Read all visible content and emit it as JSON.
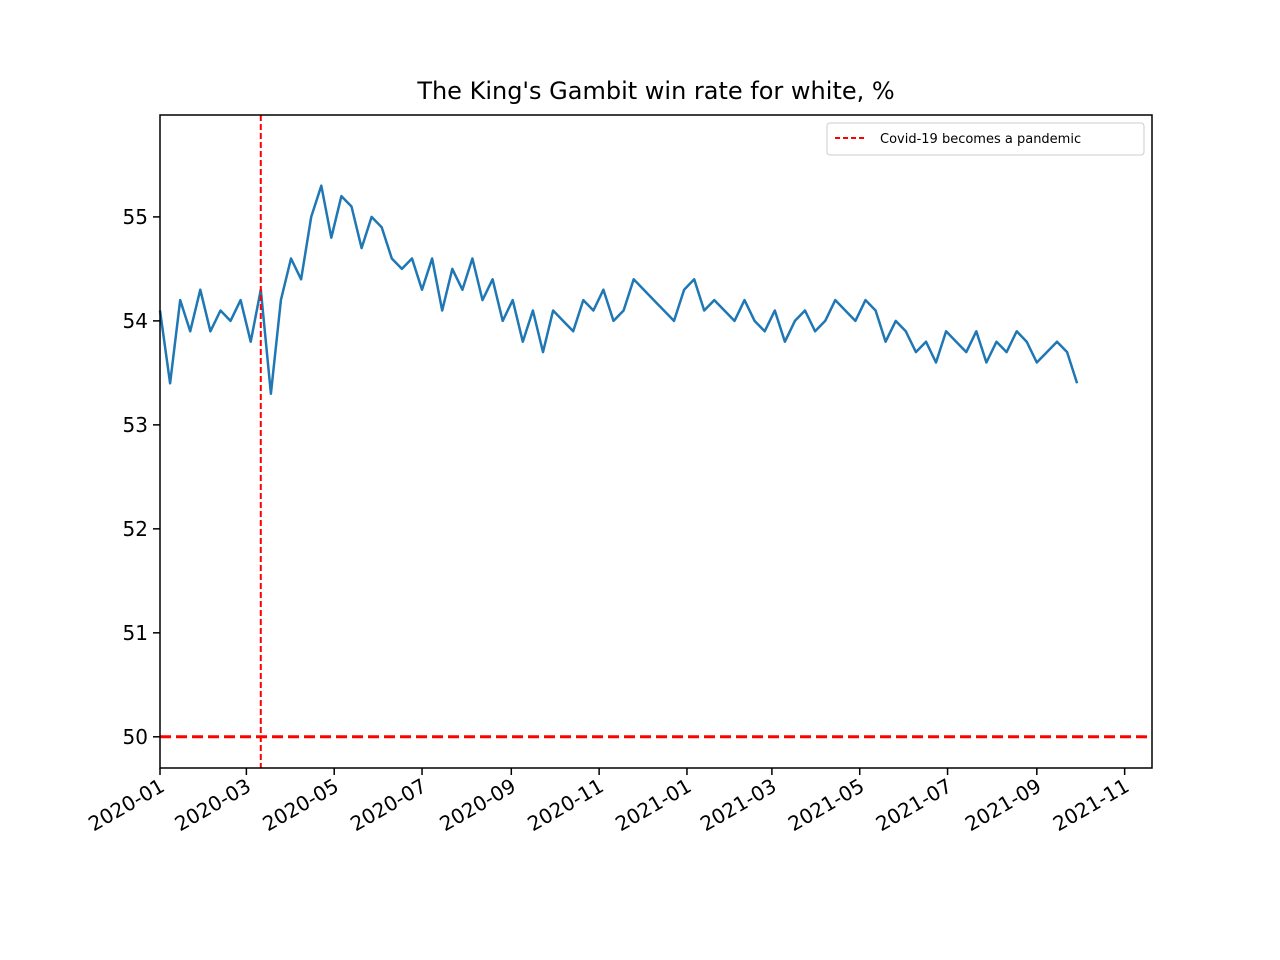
{
  "chart_data": {
    "type": "line",
    "title": "The King's Gambit win rate for white, %",
    "xlabel": "",
    "ylabel": "",
    "x_range": [
      "2020-01-01",
      "2021-11-20"
    ],
    "ylim": [
      49.7,
      55.98
    ],
    "x_ticks": [
      "2020-01",
      "2020-03",
      "2020-05",
      "2020-07",
      "2020-09",
      "2020-11",
      "2021-01",
      "2021-03",
      "2021-05",
      "2021-07",
      "2021-09",
      "2021-11"
    ],
    "y_ticks": [
      50,
      51,
      52,
      53,
      54,
      55
    ],
    "grid": false,
    "legend": {
      "placement": "top-right",
      "entries": [
        "Covid-19 becomes a pandemic"
      ]
    },
    "series": [
      {
        "color": "#1f77b4",
        "x": [
          "2020-01-01",
          "2020-01-08",
          "2020-01-15",
          "2020-01-22",
          "2020-01-29",
          "2020-02-05",
          "2020-02-12",
          "2020-02-19",
          "2020-02-26",
          "2020-03-04",
          "2020-03-11",
          "2020-03-18",
          "2020-03-25",
          "2020-04-01",
          "2020-04-08",
          "2020-04-15",
          "2020-04-22",
          "2020-04-29",
          "2020-05-06",
          "2020-05-13",
          "2020-05-20",
          "2020-05-27",
          "2020-06-03",
          "2020-06-10",
          "2020-06-17",
          "2020-06-24",
          "2020-07-01",
          "2020-07-08",
          "2020-07-15",
          "2020-07-22",
          "2020-07-29",
          "2020-08-05",
          "2020-08-12",
          "2020-08-19",
          "2020-08-26",
          "2020-09-02",
          "2020-09-09",
          "2020-09-16",
          "2020-09-23",
          "2020-09-30",
          "2020-10-07",
          "2020-10-14",
          "2020-10-21",
          "2020-10-28",
          "2020-11-04",
          "2020-11-11",
          "2020-11-18",
          "2020-11-25",
          "2020-12-02",
          "2020-12-09",
          "2020-12-16",
          "2020-12-23",
          "2020-12-30",
          "2021-01-06",
          "2021-01-13",
          "2021-01-20",
          "2021-01-27",
          "2021-02-03",
          "2021-02-10",
          "2021-02-17",
          "2021-02-24",
          "2021-03-03",
          "2021-03-10",
          "2021-03-17",
          "2021-03-24",
          "2021-03-31",
          "2021-04-07",
          "2021-04-14",
          "2021-04-21",
          "2021-04-28",
          "2021-05-05",
          "2021-05-12",
          "2021-05-19",
          "2021-05-26",
          "2021-06-02",
          "2021-06-09",
          "2021-06-16",
          "2021-06-23",
          "2021-06-30",
          "2021-07-07",
          "2021-07-14",
          "2021-07-21",
          "2021-07-28",
          "2021-08-04",
          "2021-08-11",
          "2021-08-18",
          "2021-08-25",
          "2021-09-01",
          "2021-09-08",
          "2021-09-15",
          "2021-09-22",
          "2021-09-29"
        ],
        "values": [
          54.1,
          53.4,
          54.2,
          53.9,
          54.3,
          53.9,
          54.1,
          54.0,
          54.2,
          53.8,
          54.3,
          53.3,
          54.2,
          54.6,
          54.4,
          55.0,
          55.3,
          54.8,
          55.2,
          55.1,
          54.7,
          55.0,
          54.9,
          54.6,
          54.5,
          54.6,
          54.3,
          54.6,
          54.1,
          54.5,
          54.3,
          54.6,
          54.2,
          54.4,
          54.0,
          54.2,
          53.8,
          54.1,
          53.7,
          54.1,
          54.0,
          53.9,
          54.2,
          54.1,
          54.3,
          54.0,
          54.1,
          54.4,
          54.3,
          54.2,
          54.1,
          54.0,
          54.3,
          54.4,
          54.1,
          54.2,
          54.1,
          54.0,
          54.2,
          54.0,
          53.9,
          54.1,
          53.8,
          54.0,
          54.1,
          53.9,
          54.0,
          54.2,
          54.1,
          54.0,
          54.2,
          54.1,
          53.8,
          54.0,
          53.9,
          53.7,
          53.8,
          53.6,
          53.9,
          53.8,
          53.7,
          53.9,
          53.6,
          53.8,
          53.7,
          53.9,
          53.8,
          53.6,
          53.7,
          53.8,
          53.7,
          53.4
        ]
      }
    ],
    "annotations": [
      {
        "type": "vline",
        "x": "2020-03-11",
        "color": "#ff0000",
        "style": "dashed",
        "label": "Covid-19 becomes a pandemic"
      },
      {
        "type": "hline",
        "y": 50,
        "color": "#ff0000",
        "style": "dashed"
      }
    ]
  }
}
